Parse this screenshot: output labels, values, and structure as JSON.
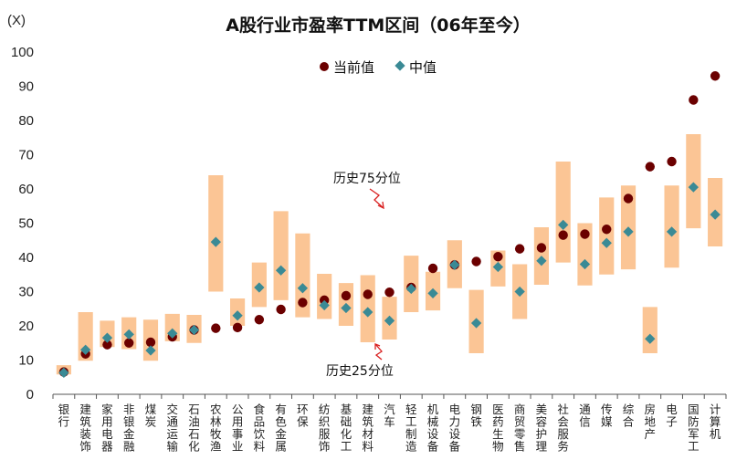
{
  "chart_data": {
    "type": "range-dot",
    "title": "A股行业市盈率TTM区间（06年至今）",
    "unit_label": "(X)",
    "ylim": [
      0,
      100
    ],
    "yticks": [
      0,
      10,
      20,
      30,
      40,
      50,
      60,
      70,
      80,
      90,
      100
    ],
    "legend": [
      {
        "name": "当前值",
        "marker": "circle",
        "color": "#6b0000"
      },
      {
        "name": "中值",
        "marker": "diamond",
        "color": "#3a8a95"
      }
    ],
    "range_color": "#fbc595",
    "annotations": [
      {
        "text": "历史75分位"
      },
      {
        "text": "历史25分位"
      }
    ],
    "categories": [
      "银行",
      "建筑装饰",
      "家用电器",
      "非银金融",
      "煤炭",
      "交通运输",
      "石油石化",
      "农林牧渔",
      "公用事业",
      "食品饮料",
      "有色金属",
      "环保",
      "纺织服饰",
      "基础化工",
      "建筑材料",
      "汽车",
      "轻工制造",
      "机械设备",
      "电力设备",
      "钢铁",
      "医药生物",
      "商贸零售",
      "美容护理",
      "社会服务",
      "通信",
      "传媒",
      "综合",
      "房地产",
      "电子",
      "国防军工",
      "计算机"
    ],
    "series": [
      {
        "name": "当前值",
        "values": [
          6.5,
          11.8,
          14.5,
          15.0,
          15.2,
          16.8,
          18.8,
          19.3,
          19.5,
          21.8,
          24.8,
          26.8,
          27.5,
          28.8,
          29.2,
          29.8,
          31.2,
          36.8,
          37.8,
          38.8,
          40.2,
          42.5,
          42.8,
          46.5,
          46.8,
          48.2,
          57.2,
          66.5,
          68.0,
          86.0,
          93.0
        ]
      },
      {
        "name": "中值",
        "values": [
          6.3,
          13.0,
          16.5,
          17.5,
          12.8,
          17.8,
          18.8,
          44.5,
          23.0,
          31.2,
          36.2,
          31.0,
          26.0,
          25.2,
          24.0,
          21.5,
          30.8,
          29.5,
          37.8,
          20.8,
          37.2,
          30.0,
          39.0,
          49.5,
          38.0,
          44.2,
          47.5,
          16.2,
          47.5,
          60.5,
          52.5
        ]
      },
      {
        "name": "历史75分位",
        "values": [
          8.5,
          24.0,
          21.5,
          22.5,
          21.8,
          23.5,
          23.2,
          64.0,
          28.0,
          38.5,
          53.5,
          47.0,
          35.2,
          32.5,
          34.8,
          28.5,
          40.5,
          35.8,
          45.0,
          30.5,
          42.0,
          38.0,
          48.8,
          68.0,
          50.0,
          57.5,
          61.0,
          25.5,
          61.0,
          76.0,
          63.2
        ]
      },
      {
        "name": "历史25分位",
        "values": [
          5.8,
          9.8,
          13.8,
          13.2,
          9.8,
          15.5,
          15.0,
          30.0,
          20.0,
          25.5,
          27.5,
          22.5,
          22.0,
          20.0,
          15.2,
          16.0,
          24.0,
          24.5,
          31.0,
          12.0,
          31.5,
          22.0,
          32.0,
          38.5,
          31.8,
          35.0,
          36.5,
          12.0,
          37.0,
          48.5,
          43.2
        ]
      }
    ]
  }
}
